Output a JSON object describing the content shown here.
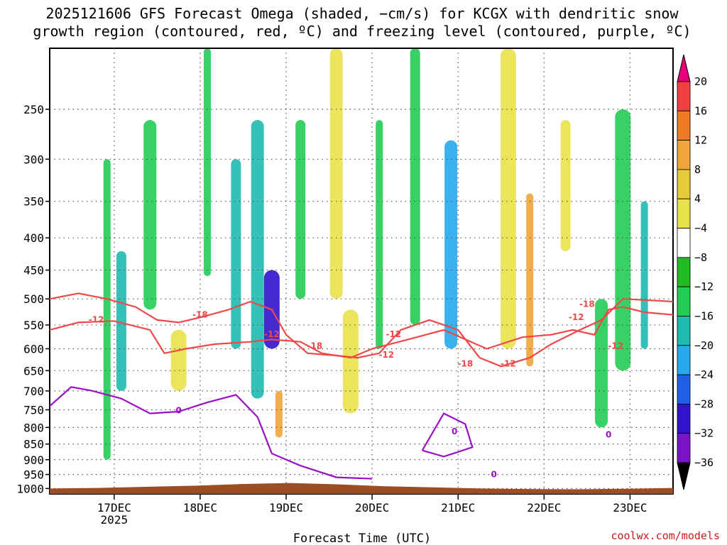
{
  "title": {
    "line1": "2025121606 GFS Forecast Omega (shaded, −cm/s) for KCGX with dendritic snow",
    "line2": "growth region (contoured, red, ºC) and freezing level (contoured, purple, ºC)"
  },
  "credit": "coolwx.com/models",
  "chart_data": {
    "type": "heatmap",
    "title": "2025121606 GFS Forecast Omega (shaded, −cm/s) for KCGX with dendritic snow growth region (contoured, red, ºC) and freezing level (contoured, purple, ºC)",
    "xlabel": "Forecast Time (UTC)",
    "ylabel": "",
    "x_ticks": [
      "17DEC",
      "18DEC",
      "19DEC",
      "20DEC",
      "21DEC",
      "22DEC",
      "23DEC"
    ],
    "x_year_label": "2025",
    "x_range_hours": [
      0,
      174
    ],
    "y_ticks": [
      250,
      300,
      350,
      400,
      450,
      500,
      550,
      600,
      650,
      700,
      750,
      800,
      850,
      900,
      950,
      1000
    ],
    "y_range_hpa": [
      200,
      1020
    ],
    "grid": true,
    "colorbar": {
      "labels": [
        "20",
        "16",
        "12",
        "8",
        "4",
        "−4",
        "−8",
        "−12",
        "−16",
        "−20",
        "−24",
        "−28",
        "−32",
        "−36"
      ],
      "colors": [
        "#e8007a",
        "#f04040",
        "#ee7a24",
        "#f1a53a",
        "#e6cb3a",
        "#e8e24a",
        "#ffffff",
        "#22bb22",
        "#22cc55",
        "#1fbab0",
        "#27a9ee",
        "#1f60e6",
        "#3312cc",
        "#7a12c6",
        "#9a10c8",
        "#a0a0a0",
        "#000000"
      ]
    },
    "contour_labels": {
      "dgz": [
        "-12",
        "-18",
        "-12",
        "-18",
        "-12",
        "-12",
        "-18",
        "-12",
        "-12",
        "-18",
        "-12"
      ],
      "freezing": [
        "0",
        "0",
        "0",
        "0"
      ]
    },
    "omega_cells": [
      {
        "t": 16,
        "p1": 300,
        "p2": 900,
        "v": -9
      },
      {
        "t": 20,
        "p1": 420,
        "p2": 700,
        "v": -14
      },
      {
        "t": 28,
        "p1": 260,
        "p2": 520,
        "v": -8
      },
      {
        "t": 36,
        "p1": 560,
        "p2": 700,
        "v": 5
      },
      {
        "t": 44,
        "p1": 200,
        "p2": 460,
        "v": -8
      },
      {
        "t": 52,
        "p1": 300,
        "p2": 600,
        "v": -13
      },
      {
        "t": 58,
        "p1": 260,
        "p2": 720,
        "v": -14
      },
      {
        "t": 62,
        "p1": 450,
        "p2": 600,
        "v": -24
      },
      {
        "t": 64,
        "p1": 700,
        "p2": 830,
        "v": 10
      },
      {
        "t": 70,
        "p1": 260,
        "p2": 500,
        "v": -9
      },
      {
        "t": 80,
        "p1": 200,
        "p2": 500,
        "v": 5
      },
      {
        "t": 84,
        "p1": 520,
        "p2": 760,
        "v": 5
      },
      {
        "t": 92,
        "p1": 260,
        "p2": 600,
        "v": -9
      },
      {
        "t": 102,
        "p1": 200,
        "p2": 550,
        "v": -11
      },
      {
        "t": 112,
        "p1": 280,
        "p2": 600,
        "v": -16
      },
      {
        "t": 128,
        "p1": 200,
        "p2": 600,
        "v": 6
      },
      {
        "t": 134,
        "p1": 340,
        "p2": 640,
        "v": 11
      },
      {
        "t": 144,
        "p1": 260,
        "p2": 420,
        "v": 5
      },
      {
        "t": 154,
        "p1": 500,
        "p2": 800,
        "v": -11
      },
      {
        "t": 160,
        "p1": 250,
        "p2": 650,
        "v": -9
      },
      {
        "t": 166,
        "p1": 350,
        "p2": 600,
        "v": -14
      }
    ]
  }
}
